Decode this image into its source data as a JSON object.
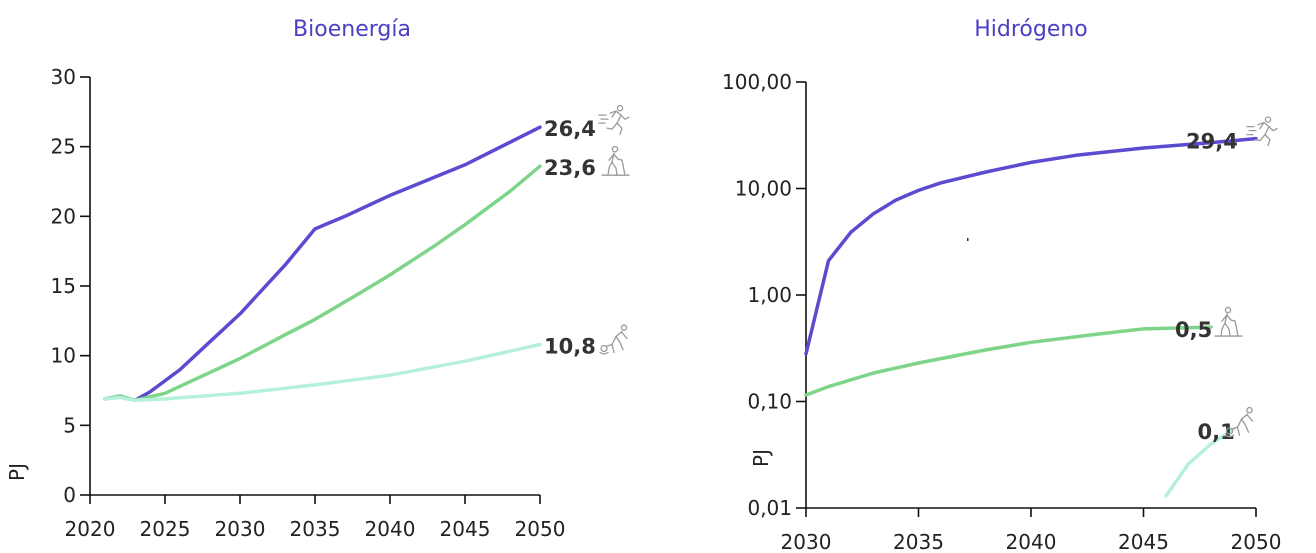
{
  "colors": {
    "title": "#4B3FC4",
    "series_high": "#5A4BD1",
    "series_mid": "#7ED58A",
    "series_low": "#B5F0DA",
    "icon": "#9a9a9a",
    "label": "#333333"
  },
  "chart_data": [
    {
      "type": "line",
      "title": "Bioenergía",
      "ylabel": "PJ",
      "xlabel": "",
      "y_scale": "linear",
      "xlim": [
        2020,
        2050
      ],
      "ylim": [
        0,
        30
      ],
      "x_ticks": [
        "2020",
        "2025",
        "2030",
        "2035",
        "2040",
        "2045",
        "2050"
      ],
      "y_ticks": [
        "0",
        "5",
        "10",
        "15",
        "20",
        "25",
        "30"
      ],
      "series": [
        {
          "color_key": "series_high",
          "icon": "running-person-icon",
          "end_label": "26,4",
          "x": [
            2021,
            2022,
            2023,
            2024,
            2026,
            2028,
            2030,
            2033,
            2035,
            2037,
            2040,
            2045,
            2050
          ],
          "y": [
            6.9,
            7.1,
            6.8,
            7.4,
            9.0,
            11.0,
            13.0,
            16.5,
            19.1,
            20.0,
            21.5,
            23.7,
            26.4
          ]
        },
        {
          "color_key": "series_mid",
          "icon": "walking-person-icon",
          "end_label": "23,6",
          "x": [
            2021,
            2022,
            2023,
            2025,
            2028,
            2030,
            2033,
            2035,
            2038,
            2040,
            2043,
            2045,
            2048,
            2050
          ],
          "y": [
            6.9,
            7.1,
            6.8,
            7.3,
            8.8,
            9.8,
            11.5,
            12.6,
            14.5,
            15.8,
            17.9,
            19.4,
            21.8,
            23.6
          ]
        },
        {
          "color_key": "series_low",
          "icon": "crawling-person-icon",
          "end_label": "10,8",
          "x": [
            2021,
            2022,
            2023,
            2025,
            2030,
            2035,
            2040,
            2045,
            2050
          ],
          "y": [
            6.9,
            7.0,
            6.8,
            6.9,
            7.3,
            7.9,
            8.6,
            9.6,
            10.8
          ]
        }
      ]
    },
    {
      "type": "line",
      "title": "Hidrógeno",
      "ylabel": "PJ",
      "xlabel": "",
      "y_scale": "log",
      "xlim": [
        2030,
        2050
      ],
      "ylim": [
        0.01,
        100
      ],
      "x_ticks": [
        "2030",
        "2035",
        "2040",
        "2045",
        "2050"
      ],
      "y_ticks": [
        "0,01",
        "0,10",
        "1,00",
        "10,00",
        "100,00"
      ],
      "series": [
        {
          "color_key": "series_high",
          "icon": "running-person-icon",
          "end_label": "29,4",
          "x": [
            2030,
            2031,
            2032,
            2033,
            2034,
            2035,
            2036,
            2038,
            2040,
            2042,
            2045,
            2048,
            2050
          ],
          "y": [
            0.28,
            2.1,
            3.9,
            5.8,
            7.8,
            9.6,
            11.3,
            14.3,
            17.6,
            20.5,
            24.0,
            27.0,
            29.4
          ]
        },
        {
          "color_key": "series_mid",
          "icon": "walking-person-icon",
          "end_label": "0,5",
          "x": [
            2030,
            2031,
            2032,
            2033,
            2035,
            2038,
            2040,
            2043,
            2045,
            2048
          ],
          "y": [
            0.115,
            0.138,
            0.16,
            0.185,
            0.23,
            0.305,
            0.36,
            0.43,
            0.48,
            0.5
          ]
        },
        {
          "color_key": "series_low",
          "icon": "crawling-person-icon",
          "end_label": "0,1",
          "x": [
            2046,
            2047,
            2048,
            2049
          ],
          "y": [
            0.013,
            0.026,
            0.04,
            0.055
          ]
        }
      ]
    }
  ]
}
